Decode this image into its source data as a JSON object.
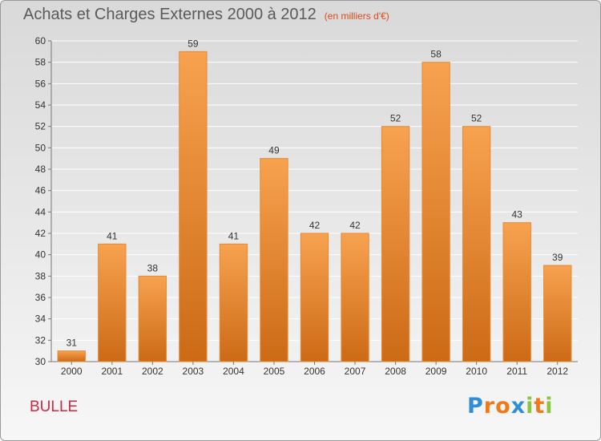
{
  "title": "Achats et Charges Externes 2000 à 2012",
  "subtitle": "(en milliers d'€)",
  "place": "BULLE",
  "logo": {
    "text": "Proxiti",
    "letters": [
      {
        "ch": "P",
        "color": "#2e8fd8"
      },
      {
        "ch": "r",
        "color": "#f07a1a"
      },
      {
        "ch": "o",
        "color": "#f07a1a"
      },
      {
        "ch": "x",
        "color": "#2e8fd8"
      },
      {
        "ch": "i",
        "color": "#8bc53f"
      },
      {
        "ch": "t",
        "color": "#f07a1a"
      },
      {
        "ch": "i",
        "color": "#8bc53f"
      }
    ]
  },
  "colors": {
    "bar_light": "#f7a24f",
    "bar_dark": "#cc6a16",
    "bar_edge": "#e58a35",
    "grid": "#ffffff",
    "axis": "#777777",
    "text": "#333333"
  },
  "chart_data": {
    "type": "bar",
    "categories": [
      "2000",
      "2001",
      "2002",
      "2003",
      "2004",
      "2005",
      "2006",
      "2007",
      "2008",
      "2009",
      "2010",
      "2011",
      "2012"
    ],
    "values": [
      31,
      41,
      38,
      59,
      41,
      49,
      42,
      42,
      52,
      58,
      52,
      43,
      39
    ],
    "ylim": [
      30,
      60
    ],
    "ytick_step": 2,
    "grid": true,
    "data_labels": true
  }
}
